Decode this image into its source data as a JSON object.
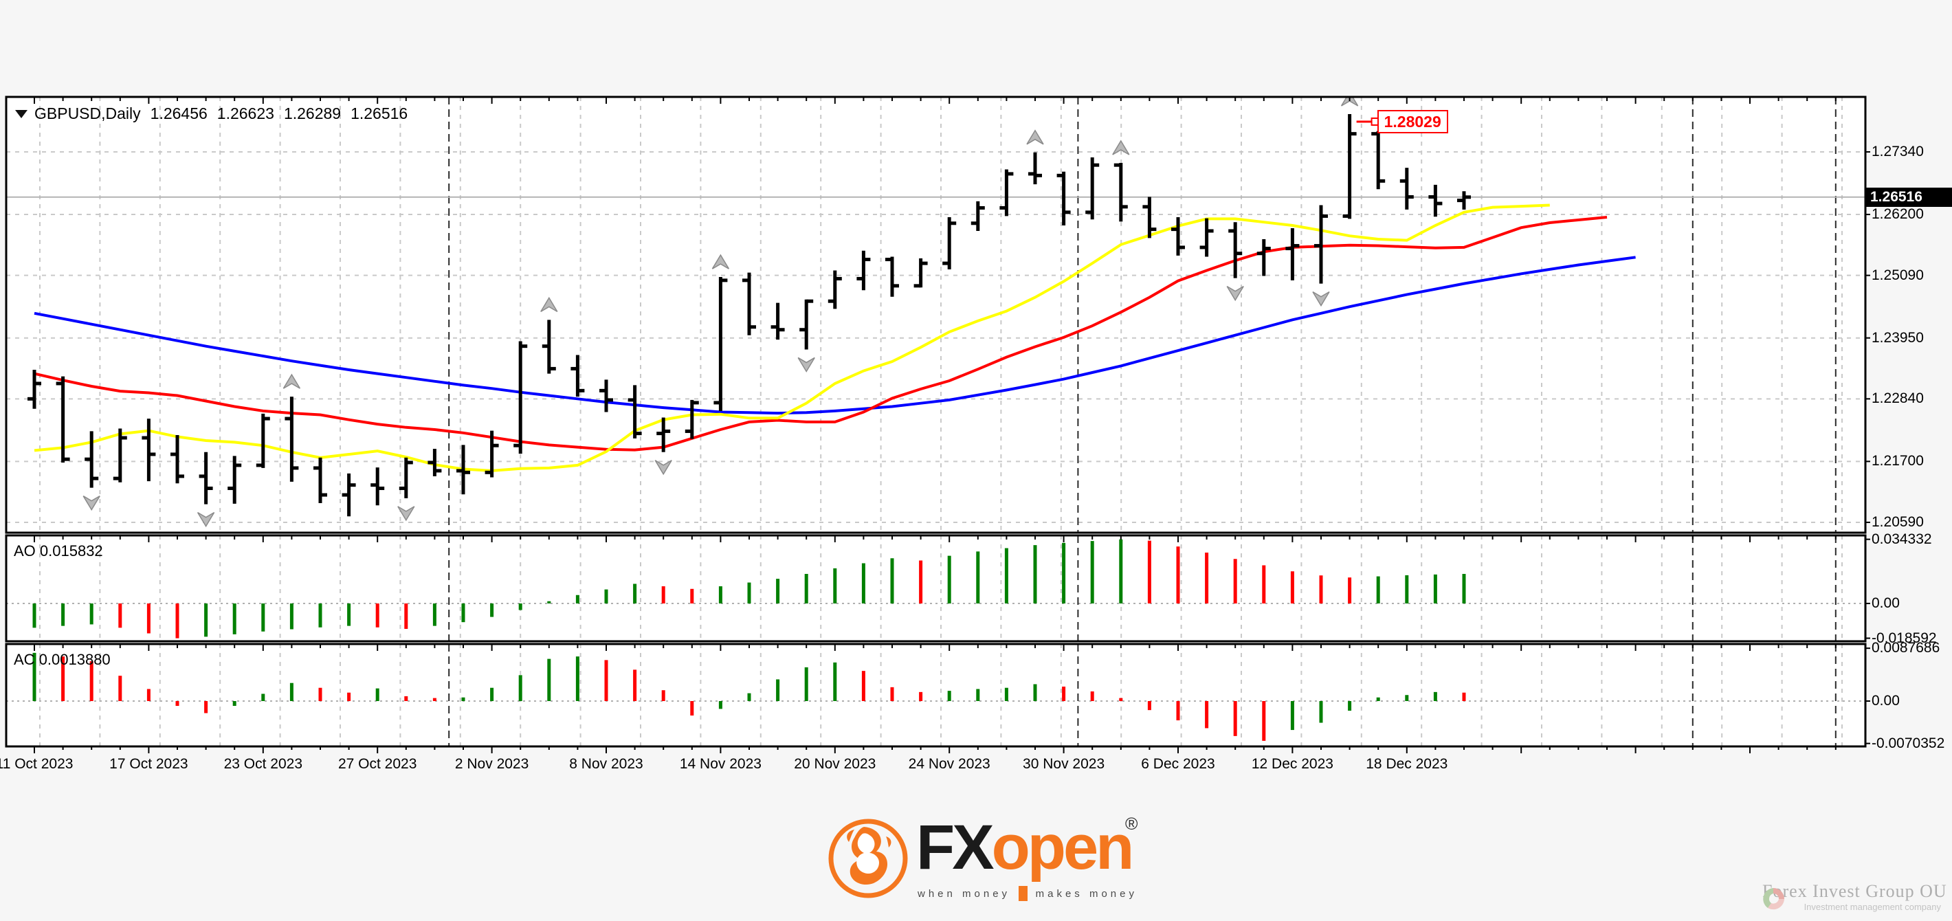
{
  "page": {
    "background": "#f6f6f6",
    "panel_background": "#ffffff"
  },
  "header": {
    "symbol_title": "GBPUSD,Daily",
    "ohlc": {
      "open": "1.26456",
      "high": "1.26623",
      "low": "1.26289",
      "close": "1.26516"
    }
  },
  "main_panel": {
    "price_axis_labels": [
      "1.27340",
      "1.26200",
      "1.25090",
      "1.23950",
      "1.22840",
      "1.21700",
      "1.20590"
    ],
    "current_price_label": "1.26516",
    "high_callout_label": "1.28029"
  },
  "ao_panel": {
    "label": "AO 0.015832",
    "axis_labels": [
      "0.034332",
      "0.00",
      "-0.018592"
    ]
  },
  "ac_panel": {
    "label": "AC 0.0013880",
    "axis_labels": [
      "0.0087686",
      "0.00",
      "-0.0070352"
    ]
  },
  "time_axis": {
    "dates": [
      "11 Oct 2023",
      "17 Oct 2023",
      "23 Oct 2023",
      "27 Oct 2023",
      "2 Nov 2023",
      "8 Nov 2023",
      "14 Nov 2023",
      "20 Nov 2023",
      "24 Nov 2023",
      "30 Nov 2023",
      "6 Dec 2023",
      "12 Dec 2023",
      "18 Dec 2023"
    ]
  },
  "footer": {
    "brand": {
      "fx": "FX",
      "open": "open",
      "registered": "®",
      "tagline_left": "when money",
      "tagline_right": "makes money"
    },
    "partner": {
      "name": "Forex Invest Group OU",
      "subtitle": "Investment management company"
    }
  },
  "colors": {
    "bar": "#000000",
    "jaw": "#0000ff",
    "teeth": "#ff0000",
    "lips": "#ffff00",
    "histogram_up": "#008000",
    "histogram_down": "#ff0000",
    "grid": "#c9c9c9",
    "separator": "#2a2a2a",
    "current_price_line": "#b4b4b4",
    "fractal": "#aeaeae",
    "callout": "#ff0000",
    "brand_orange": "#f4771f"
  },
  "chart_data": {
    "type": "ohlc",
    "title": "GBPUSD,Daily",
    "bars_per_date_label": 4,
    "x_date_labels": [
      "11 Oct 2023",
      "17 Oct 2023",
      "23 Oct 2023",
      "27 Oct 2023",
      "2 Nov 2023",
      "8 Nov 2023",
      "14 Nov 2023",
      "20 Nov 2023",
      "24 Nov 2023",
      "30 Nov 2023",
      "6 Dec 2023",
      "12 Dec 2023",
      "18 Dec 2023"
    ],
    "price_axis": [
      1.2734,
      1.262,
      1.2509,
      1.2395,
      1.2284,
      1.217,
      1.2059
    ],
    "current_price": 1.26516,
    "last_ohlc": [
      1.26456,
      1.26623,
      1.26289,
      1.26516
    ],
    "high_marker": {
      "bar": 46,
      "price": 1.28029,
      "label": "1.28029"
    },
    "bars": [
      [
        1.2284,
        1.2337,
        1.2266,
        1.2312
      ],
      [
        1.2312,
        1.2325,
        1.2168,
        1.2174
      ],
      [
        1.2174,
        1.2225,
        1.2122,
        1.2139
      ],
      [
        1.2139,
        1.223,
        1.2132,
        1.2213
      ],
      [
        1.2213,
        1.2248,
        1.2134,
        1.2183
      ],
      [
        1.2183,
        1.2218,
        1.213,
        1.2143
      ],
      [
        1.2143,
        1.2187,
        1.2092,
        1.2121
      ],
      [
        1.2121,
        1.218,
        1.2093,
        1.2163
      ],
      [
        1.2163,
        1.2257,
        1.2158,
        1.2248
      ],
      [
        1.2248,
        1.2288,
        1.2133,
        1.2158
      ],
      [
        1.2158,
        1.2177,
        1.2094,
        1.2109
      ],
      [
        1.2109,
        1.2148,
        1.207,
        1.2127
      ],
      [
        1.2127,
        1.2159,
        1.209,
        1.2121
      ],
      [
        1.2121,
        1.2177,
        1.2103,
        1.2168
      ],
      [
        1.2168,
        1.2193,
        1.2143,
        1.2153
      ],
      [
        1.2153,
        1.22,
        1.211,
        1.215
      ],
      [
        1.215,
        1.2226,
        1.2141,
        1.2199
      ],
      [
        1.2199,
        1.2389,
        1.2184,
        1.238
      ],
      [
        1.238,
        1.2428,
        1.233,
        1.2339
      ],
      [
        1.2339,
        1.2364,
        1.2288,
        1.2299
      ],
      [
        1.2299,
        1.2319,
        1.226,
        1.2282
      ],
      [
        1.2282,
        1.2309,
        1.2212,
        1.2221
      ],
      [
        1.2221,
        1.225,
        1.2187,
        1.2225
      ],
      [
        1.2225,
        1.2282,
        1.2211,
        1.2277
      ],
      [
        1.2277,
        1.2506,
        1.2262,
        1.25
      ],
      [
        1.25,
        1.2514,
        1.24,
        1.2415
      ],
      [
        1.2415,
        1.2459,
        1.2392,
        1.241
      ],
      [
        1.241,
        1.2465,
        1.2374,
        1.2462
      ],
      [
        1.2462,
        1.2518,
        1.2448,
        1.2503
      ],
      [
        1.2503,
        1.2554,
        1.2482,
        1.2538
      ],
      [
        1.2538,
        1.2543,
        1.247,
        1.249
      ],
      [
        1.249,
        1.254,
        1.2487,
        1.2531
      ],
      [
        1.2531,
        1.2615,
        1.252,
        1.2604
      ],
      [
        1.2604,
        1.2644,
        1.259,
        1.2632
      ],
      [
        1.2632,
        1.2702,
        1.2617,
        1.2694
      ],
      [
        1.2694,
        1.2733,
        1.2675,
        1.2691
      ],
      [
        1.2691,
        1.2698,
        1.26,
        1.2624
      ],
      [
        1.2624,
        1.2724,
        1.2611,
        1.271
      ],
      [
        1.271,
        1.2714,
        1.2607,
        1.2634
      ],
      [
        1.2634,
        1.2652,
        1.2577,
        1.2593
      ],
      [
        1.2593,
        1.2615,
        1.2545,
        1.256
      ],
      [
        1.256,
        1.2613,
        1.2543,
        1.259
      ],
      [
        1.259,
        1.2606,
        1.2504,
        1.2549
      ],
      [
        1.2549,
        1.2575,
        1.2508,
        1.2558
      ],
      [
        1.2558,
        1.2595,
        1.25,
        1.2563
      ],
      [
        1.2563,
        1.2637,
        1.2494,
        1.2617
      ],
      [
        1.2617,
        1.28029,
        1.2612,
        1.2767
      ],
      [
        1.2767,
        1.2772,
        1.2666,
        1.2681
      ],
      [
        1.2681,
        1.2705,
        1.2629,
        1.2652
      ],
      [
        1.2652,
        1.2674,
        1.2616,
        1.264
      ],
      [
        1.26456,
        1.26623,
        1.26289,
        1.26516
      ]
    ],
    "alligator": {
      "jaw": {
        "color": "#0000ff",
        "values": [
          1.244,
          1.243,
          1.242,
          1.241,
          1.24,
          1.239,
          1.238,
          1.2371,
          1.2362,
          1.2353,
          1.2345,
          1.2337,
          1.233,
          1.2323,
          1.2316,
          1.2309,
          1.2303,
          1.2296,
          1.229,
          1.2284,
          1.2278,
          1.2273,
          1.2268,
          1.2264,
          1.226,
          1.2259,
          1.2258,
          1.2259,
          1.2262,
          1.2266,
          1.227,
          1.2276,
          1.2282,
          1.2291,
          1.23,
          1.231,
          1.232,
          1.2332,
          1.2344,
          1.2358,
          1.2372,
          1.2386,
          1.24,
          1.2414,
          1.2428,
          1.244,
          1.2452,
          1.2463,
          1.2474,
          1.2484,
          1.2494,
          1.2503,
          1.2512,
          1.252,
          1.2528,
          1.2535,
          1.2542
        ]
      },
      "teeth": {
        "color": "#ff0000",
        "values": [
          1.233,
          1.2318,
          1.2307,
          1.2298,
          1.2295,
          1.229,
          1.228,
          1.227,
          1.2262,
          1.2258,
          1.2255,
          1.2246,
          1.2238,
          1.2232,
          1.2228,
          1.2222,
          1.2214,
          1.2206,
          1.22,
          1.2196,
          1.2192,
          1.2191,
          1.2196,
          1.2212,
          1.2228,
          1.2242,
          1.2245,
          1.2242,
          1.2242,
          1.226,
          1.2285,
          1.2302,
          1.2317,
          1.2338,
          1.236,
          1.2379,
          1.2396,
          1.2417,
          1.2442,
          1.2469,
          1.2499,
          1.2518,
          1.2536,
          1.2552,
          1.256,
          1.2562,
          1.2564,
          1.2563,
          1.2561,
          1.2559,
          1.256,
          1.2578,
          1.2596,
          1.2605,
          1.261,
          1.2615
        ]
      },
      "lips": {
        "color": "#ffff00",
        "values": [
          1.219,
          1.2195,
          1.2205,
          1.222,
          1.2226,
          1.2215,
          1.2208,
          1.2205,
          1.2199,
          1.2187,
          1.2177,
          1.2183,
          1.2189,
          1.2178,
          1.2164,
          1.2156,
          1.2153,
          1.2157,
          1.2158,
          1.2163,
          1.2188,
          1.2226,
          1.2246,
          1.2255,
          1.2256,
          1.2249,
          1.2249,
          1.2276,
          1.2312,
          1.2335,
          1.2352,
          1.2378,
          1.2406,
          1.2426,
          1.2444,
          1.2469,
          1.2498,
          1.2531,
          1.2565,
          1.2582,
          1.2599,
          1.2612,
          1.2612,
          1.2606,
          1.26,
          1.2591,
          1.2581,
          1.2575,
          1.2573,
          1.26,
          1.2624,
          1.2633,
          1.2635,
          1.2637
        ]
      }
    },
    "ao": {
      "name": "AO",
      "current": 0.015832,
      "values": [
        -0.013,
        -0.012,
        -0.0112,
        -0.013,
        -0.016,
        -0.0186,
        -0.0178,
        -0.0165,
        -0.015,
        -0.0138,
        -0.0128,
        -0.012,
        -0.0128,
        -0.0136,
        -0.012,
        -0.01,
        -0.0072,
        -0.0035,
        0.0012,
        0.0045,
        0.0075,
        0.0105,
        0.0092,
        0.0078,
        0.0092,
        0.0112,
        0.0132,
        0.0158,
        0.0188,
        0.0215,
        0.0242,
        0.023,
        0.0255,
        0.0278,
        0.0296,
        0.0312,
        0.0324,
        0.0334,
        0.0343,
        0.0336,
        0.0305,
        0.0272,
        0.0238,
        0.0204,
        0.0172,
        0.015,
        0.0139,
        0.0145,
        0.0151,
        0.0155,
        0.0158
      ],
      "colors": [
        "g",
        "g",
        "g",
        "r",
        "r",
        "r",
        "g",
        "g",
        "g",
        "g",
        "g",
        "g",
        "r",
        "r",
        "g",
        "g",
        "g",
        "g",
        "g",
        "g",
        "g",
        "g",
        "r",
        "r",
        "g",
        "g",
        "g",
        "g",
        "g",
        "g",
        "g",
        "r",
        "g",
        "g",
        "g",
        "g",
        "g",
        "g",
        "g",
        "r",
        "r",
        "r",
        "r",
        "r",
        "r",
        "r",
        "r",
        "g",
        "g",
        "g",
        "g"
      ],
      "scale_max": 0.034332,
      "scale_min": -0.018592
    },
    "ac": {
      "name": "AC",
      "current": 0.001388,
      "values": [
        0.008,
        0.0074,
        0.0066,
        0.0042,
        0.002,
        -0.0008,
        -0.002,
        -0.0008,
        0.0012,
        0.003,
        0.0022,
        0.0014,
        0.0021,
        0.0008,
        0.0005,
        0.0006,
        0.0022,
        0.0043,
        0.007,
        0.0074,
        0.0068,
        0.0052,
        0.0018,
        -0.0024,
        -0.0013,
        0.0013,
        0.0036,
        0.0056,
        0.0064,
        0.005,
        0.0023,
        0.0015,
        0.0017,
        0.002,
        0.0022,
        0.0028,
        0.0024,
        0.0016,
        0.0005,
        -0.0015,
        -0.0032,
        -0.0045,
        -0.0058,
        -0.0066,
        -0.0048,
        -0.0036,
        -0.0016,
        0.0006,
        0.001,
        0.0015,
        0.0014
      ],
      "colors": [
        "g",
        "r",
        "r",
        "r",
        "r",
        "r",
        "r",
        "g",
        "g",
        "g",
        "r",
        "r",
        "g",
        "r",
        "r",
        "g",
        "g",
        "g",
        "g",
        "g",
        "r",
        "r",
        "r",
        "r",
        "g",
        "g",
        "g",
        "g",
        "g",
        "r",
        "r",
        "r",
        "g",
        "g",
        "g",
        "g",
        "r",
        "r",
        "r",
        "r",
        "r",
        "r",
        "r",
        "r",
        "g",
        "g",
        "g",
        "g",
        "g",
        "g",
        "r"
      ],
      "scale_max": 0.0087686,
      "scale_min": -0.0070352
    },
    "fractals": [
      {
        "bar": 2,
        "dir": "down"
      },
      {
        "bar": 6,
        "dir": "down"
      },
      {
        "bar": 9,
        "dir": "up"
      },
      {
        "bar": 13,
        "dir": "down"
      },
      {
        "bar": 18,
        "dir": "up"
      },
      {
        "bar": 22,
        "dir": "down"
      },
      {
        "bar": 24,
        "dir": "up"
      },
      {
        "bar": 27,
        "dir": "down"
      },
      {
        "bar": 35,
        "dir": "up"
      },
      {
        "bar": 38,
        "dir": "up"
      },
      {
        "bar": 42,
        "dir": "down"
      },
      {
        "bar": 45,
        "dir": "down"
      },
      {
        "bar": 46,
        "dir": "up"
      }
    ],
    "month_separators_bar_pos": [
      14.5,
      36.5,
      58,
      63
    ]
  }
}
